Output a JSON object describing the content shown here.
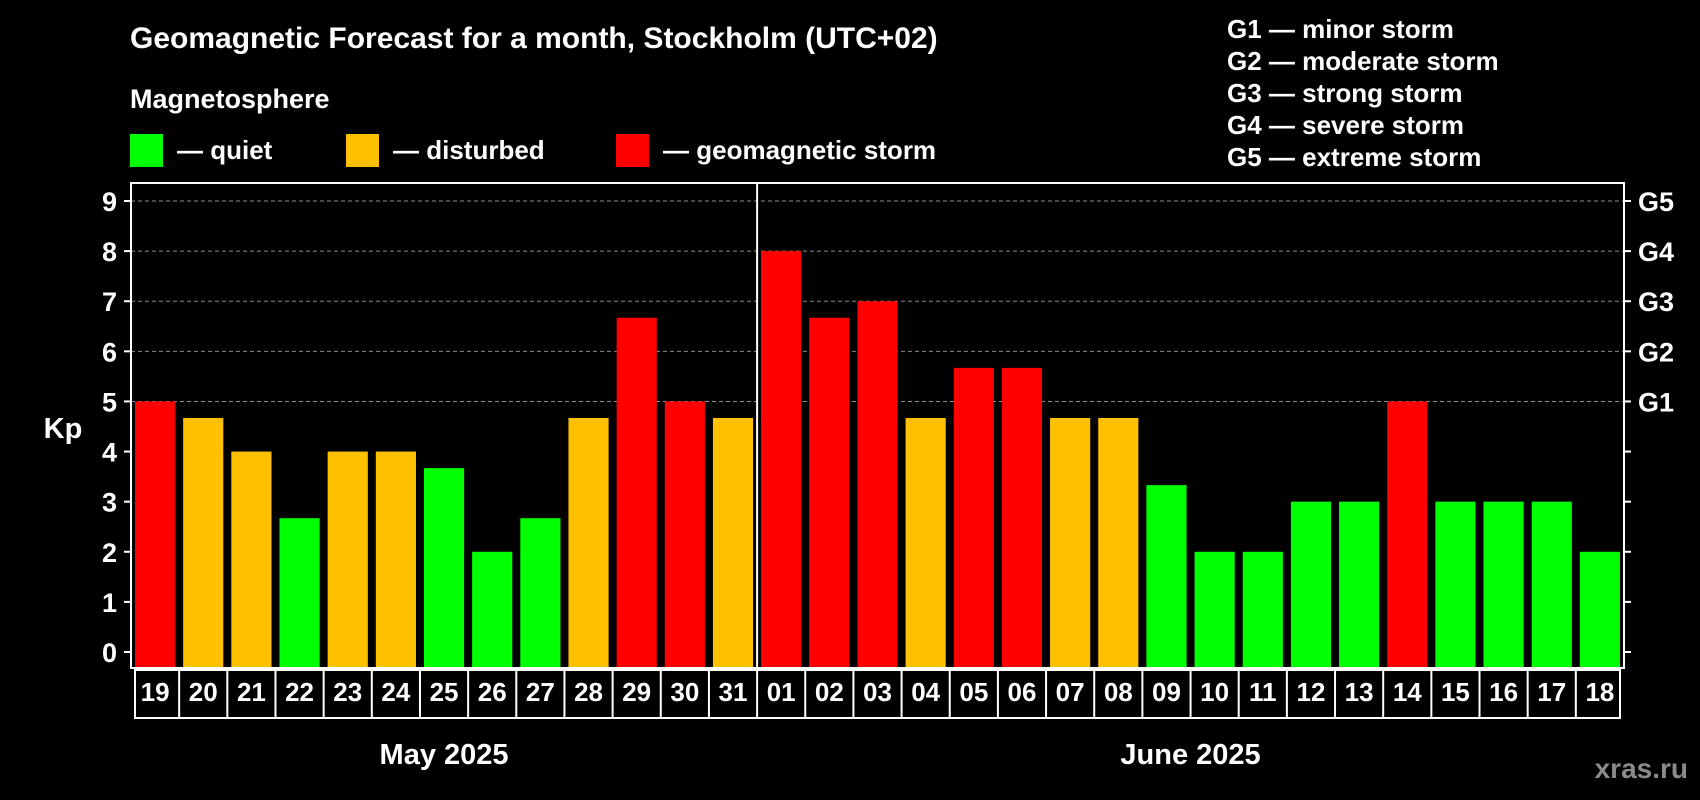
{
  "header": {
    "title": "Geomagnetic Forecast for a month, Stockholm (UTC+02)",
    "legend_title": "Magnetosphere",
    "legend": [
      {
        "label": "— quiet",
        "color": "#00ff00"
      },
      {
        "label": "— disturbed",
        "color": "#ffc000"
      },
      {
        "label": "— geomagnetic storm",
        "color": "#ff0000"
      }
    ],
    "g_scale": [
      "G1 — minor storm",
      "G2 — moderate storm",
      "G3 — strong storm",
      "G4 — severe storm",
      "G5 — extreme storm"
    ]
  },
  "watermark": "xras.ru",
  "chart_data": {
    "type": "bar",
    "ylabel": "Kp",
    "ylim": [
      0,
      9
    ],
    "yticks": [
      "0",
      "1",
      "2",
      "3",
      "4",
      "5",
      "6",
      "7",
      "8",
      "9"
    ],
    "right_ticks": [
      {
        "value": 5,
        "label": "G1"
      },
      {
        "value": 6,
        "label": "G2"
      },
      {
        "value": 7,
        "label": "G3"
      },
      {
        "value": 8,
        "label": "G4"
      },
      {
        "value": 9,
        "label": "G5"
      }
    ],
    "grid": true,
    "months": [
      {
        "label": "May 2025",
        "first_index": 0,
        "last_index": 12
      },
      {
        "label": "June 2025",
        "first_index": 13,
        "last_index": 30
      }
    ],
    "categories": [
      "19",
      "20",
      "21",
      "22",
      "23",
      "24",
      "25",
      "26",
      "27",
      "28",
      "29",
      "30",
      "31",
      "01",
      "02",
      "03",
      "04",
      "05",
      "06",
      "07",
      "08",
      "09",
      "10",
      "11",
      "12",
      "13",
      "14",
      "15",
      "16",
      "17",
      "18"
    ],
    "values": [
      5,
      4.67,
      4,
      2.67,
      4,
      4,
      3.67,
      2,
      2.67,
      4.67,
      6.67,
      5,
      4.67,
      8,
      6.67,
      7,
      4.67,
      5.67,
      5.67,
      4.67,
      4.67,
      3.33,
      2,
      2,
      3,
      3,
      5,
      3,
      3,
      3,
      2
    ],
    "levels": [
      "storm",
      "disturbed",
      "disturbed",
      "quiet",
      "disturbed",
      "disturbed",
      "quiet",
      "quiet",
      "quiet",
      "disturbed",
      "storm",
      "storm",
      "disturbed",
      "storm",
      "storm",
      "storm",
      "disturbed",
      "storm",
      "storm",
      "disturbed",
      "disturbed",
      "quiet",
      "quiet",
      "quiet",
      "quiet",
      "quiet",
      "storm",
      "quiet",
      "quiet",
      "quiet",
      "quiet"
    ],
    "colors": {
      "quiet": "#00ff00",
      "disturbed": "#ffc000",
      "storm": "#ff0000"
    }
  }
}
